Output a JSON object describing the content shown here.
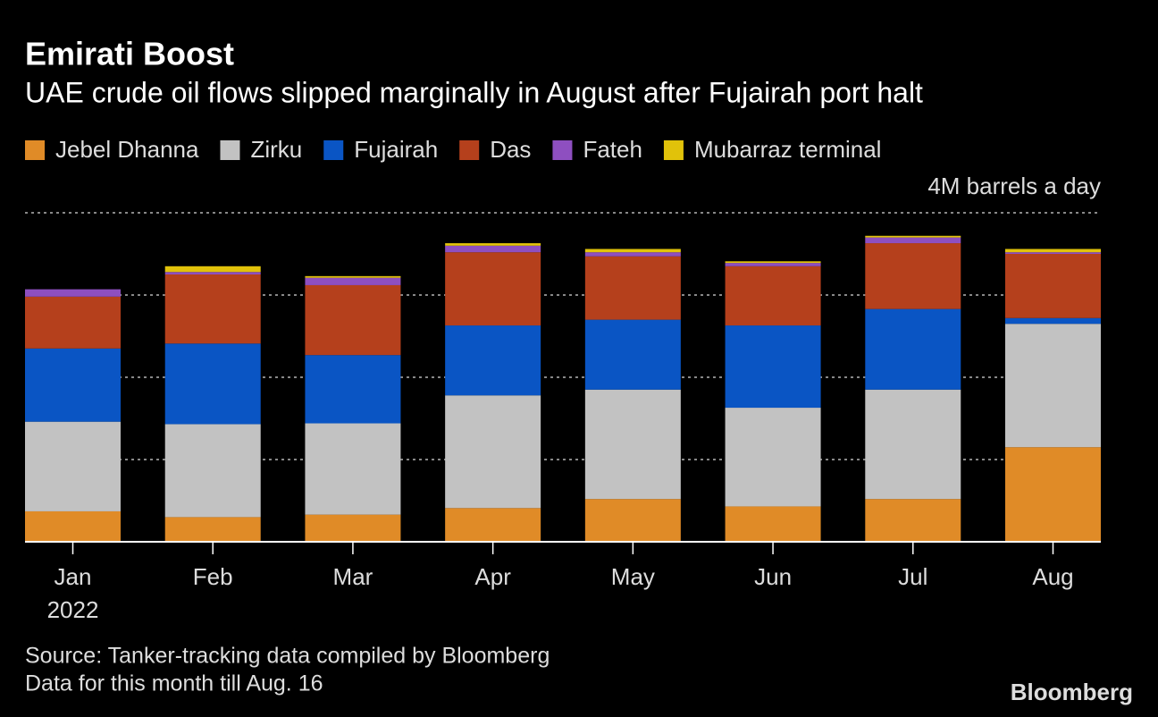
{
  "chart_data": {
    "type": "stacked_bar",
    "title": "Emirati Boost",
    "subtitle": "UAE crude oil flows slipped marginally in August after Fujairah port halt",
    "categories": [
      "Jan",
      "Feb",
      "Mar",
      "Apr",
      "May",
      "Jun",
      "Jul",
      "Aug"
    ],
    "x_sublabel": "2022",
    "series": [
      {
        "name": "Jebel Dhanna",
        "color": "#e08b27",
        "values": [
          0.37,
          0.3,
          0.33,
          0.41,
          0.52,
          0.43,
          0.52,
          1.15
        ]
      },
      {
        "name": "Zirku",
        "color": "#c2c2c2",
        "values": [
          1.09,
          1.13,
          1.11,
          1.37,
          1.33,
          1.2,
          1.33,
          1.5
        ]
      },
      {
        "name": "Fujairah",
        "color": "#0a55c4",
        "values": [
          0.89,
          0.98,
          0.83,
          0.85,
          0.85,
          1.0,
          0.98,
          0.07
        ]
      },
      {
        "name": "Das",
        "color": "#b5401c",
        "values": [
          0.63,
          0.84,
          0.85,
          0.89,
          0.77,
          0.72,
          0.8,
          0.78
        ]
      },
      {
        "name": "Fateh",
        "color": "#8e4fc0",
        "values": [
          0.09,
          0.03,
          0.09,
          0.08,
          0.05,
          0.04,
          0.07,
          0.02
        ]
      },
      {
        "name": "Mubarraz terminal",
        "color": "#e1c20a",
        "values": [
          0,
          0.07,
          0.02,
          0.03,
          0.04,
          0.02,
          0.02,
          0.04
        ]
      }
    ],
    "ylim": [
      0,
      4
    ],
    "yticks": [
      0,
      1,
      2,
      3,
      {
        "value": 4,
        "label": "4M barrels a day"
      }
    ],
    "grid": true,
    "source": "Source: Tanker-tracking data compiled by Bloomberg",
    "note": "Data for this month till Aug. 16",
    "brand": "Bloomberg"
  }
}
